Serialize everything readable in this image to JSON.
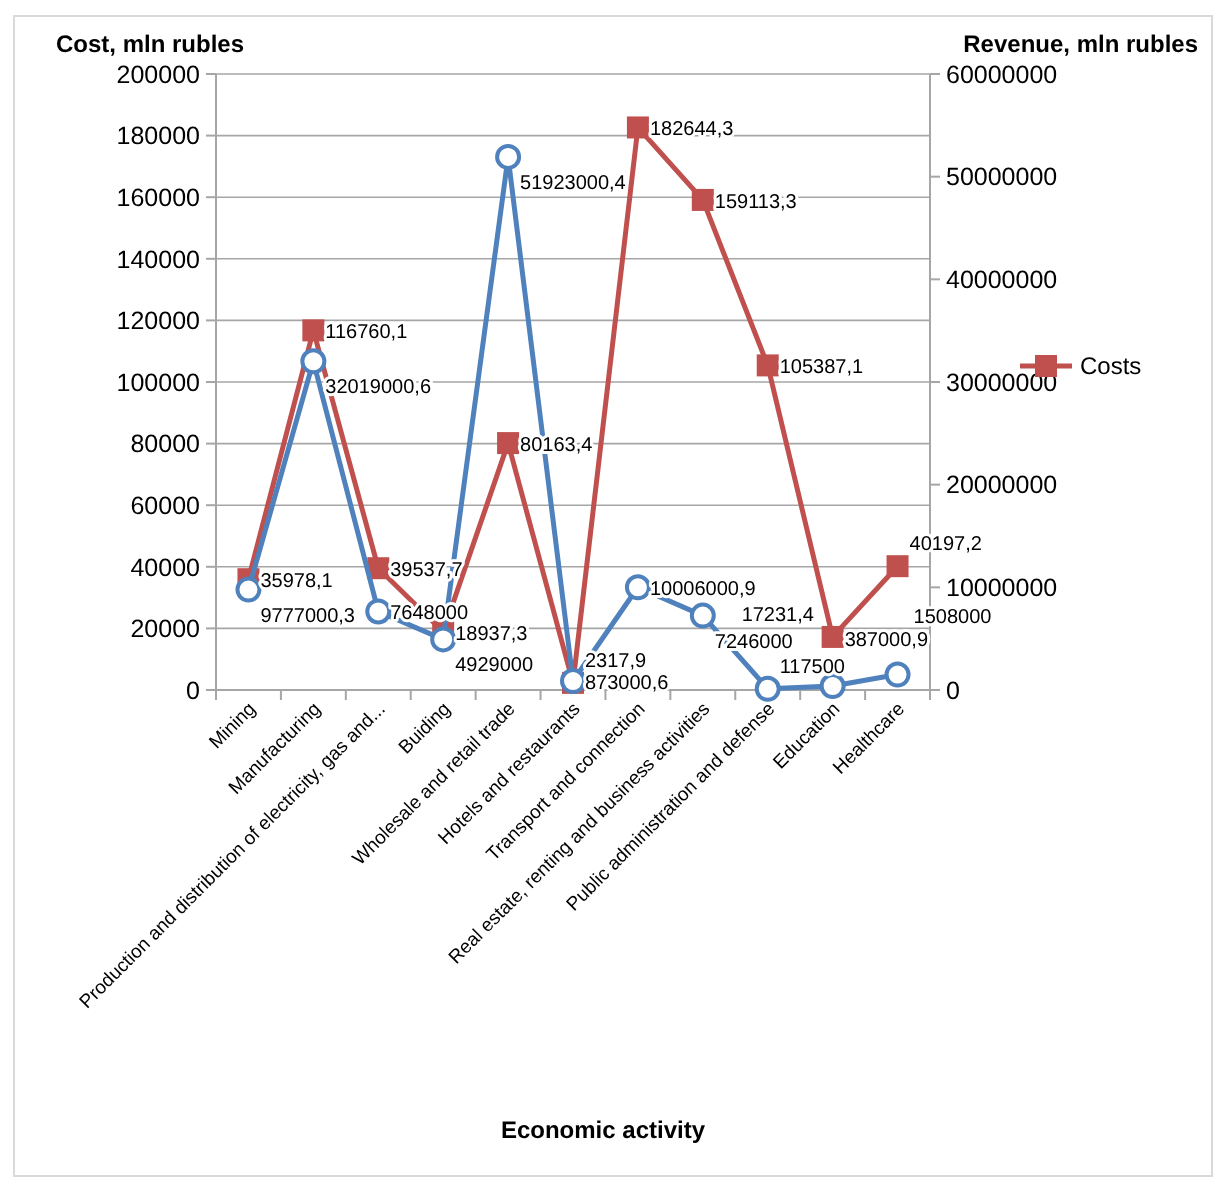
{
  "chart_data": {
    "type": "line",
    "xlabel": "Economic activity",
    "ylabel": "Cost, mln rubles",
    "y2label": "Revenue, mln rubles",
    "categories": [
      "Mining",
      "Manufacturing",
      "Production and distribution of electricity, gas and...",
      "Buiding",
      "Wholesale and retail trade",
      "Hotels and restaurants",
      "Transport and connection",
      "Real estate, renting and business activities",
      "Public administration and defense",
      "Education",
      "Healthcare"
    ],
    "series": [
      {
        "name": "Costs",
        "color": "#c0504d",
        "marker": "square",
        "values": [
          35978.1,
          116760.1,
          39537.7,
          18937.3,
          80163.4,
          2317.9,
          182644.3,
          159113.3,
          105387.1,
          17231.4,
          40197.2
        ],
        "value_labels": [
          "35978,1",
          "116760,1",
          "39537,7",
          "18937,3",
          "80163,4",
          "2317,9",
          "182644,3",
          "159113,3",
          "105387,1",
          "17231,4",
          "40197,2"
        ]
      },
      {
        "color": "#4f81bd",
        "marker": "circle",
        "axis": "y2",
        "values": [
          9777000.3,
          32019000.6,
          7648000,
          4929000,
          51923000.4,
          873000.6,
          10006000.9,
          7246000,
          117500,
          387000.9,
          1508000
        ],
        "value_labels": [
          "9777000,3",
          "32019000,6",
          "7648000",
          "4929000",
          "51923000,4",
          "873000,6",
          "10006000,9",
          "7246000",
          "117500",
          "387000,9",
          "1508000"
        ]
      }
    ],
    "ylim": [
      0,
      200000
    ],
    "yticks": [
      0,
      20000,
      40000,
      60000,
      80000,
      100000,
      120000,
      140000,
      160000,
      180000,
      200000
    ],
    "y2lim": [
      0,
      60000000
    ],
    "y2ticks": [
      0,
      10000000,
      20000000,
      30000000,
      40000000,
      50000000,
      60000000
    ],
    "grid": "y",
    "legend": "right"
  }
}
